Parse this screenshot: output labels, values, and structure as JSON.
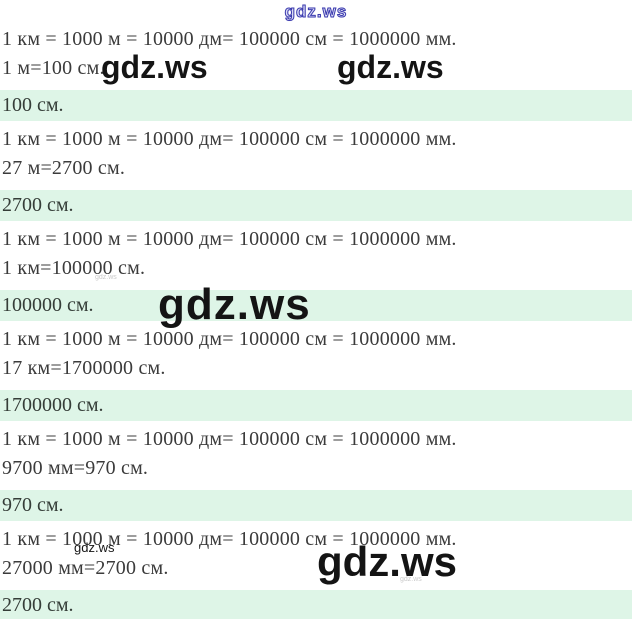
{
  "page": {
    "background": "#ffffff",
    "band_color": "#def5e7",
    "text_color": "#3b3b3b",
    "watermark_blue": "#3a3aae",
    "watermark_black": "#141414"
  },
  "watermark": {
    "text": "gdz.ws"
  },
  "blocks": [
    {
      "formula": "1 км = 1000 м = 10000 дм= 100000 см = 1000000 мм.",
      "work": "1 м=100 см.",
      "answer": "100 см."
    },
    {
      "formula": "1 км = 1000 м = 10000 дм= 100000 см = 1000000 мм.",
      "work": "27 м=2700 см.",
      "answer": "2700 см."
    },
    {
      "formula": "1 км = 1000 м = 10000 дм= 100000 см = 1000000 мм.",
      "work": "1 км=100000 см.",
      "answer": "100000 см."
    },
    {
      "formula": "1 км = 1000 м = 10000 дм= 100000 см = 1000000 мм.",
      "work": "17 км=1700000 см.",
      "answer": "1700000 см."
    },
    {
      "formula": "1 км = 1000 м = 10000 дм= 100000 см = 1000000 мм.",
      "work": "9700 мм=970 см.",
      "answer": "970 см."
    },
    {
      "formula": "1 км = 1000 м = 10000 дм= 100000 см = 1000000 мм.",
      "work": "27000 мм=2700 см.",
      "answer": "2700 см."
    }
  ]
}
